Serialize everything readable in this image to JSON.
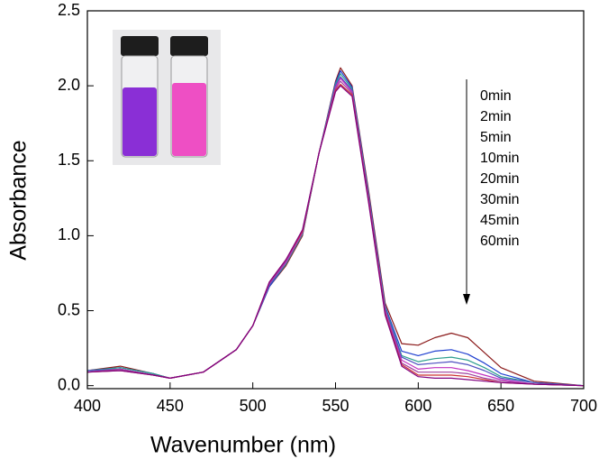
{
  "chart_data": {
    "type": "line",
    "x_label": "Wavenumber (nm)",
    "y_label": "Absorbance",
    "x": [
      400,
      420,
      440,
      450,
      470,
      490,
      500,
      510,
      520,
      530,
      540,
      550,
      553,
      560,
      570,
      580,
      590,
      600,
      610,
      620,
      630,
      640,
      650,
      670,
      700
    ],
    "series": [
      {
        "name": "0min",
        "color": "#8b1a1a",
        "values": [
          0.1,
          0.13,
          0.08,
          0.05,
          0.09,
          0.24,
          0.4,
          0.66,
          0.8,
          1.0,
          1.55,
          2.03,
          2.12,
          2.0,
          1.3,
          0.55,
          0.28,
          0.27,
          0.32,
          0.35,
          0.32,
          0.22,
          0.12,
          0.03,
          0.0
        ]
      },
      {
        "name": "2min",
        "color": "#1f3fd0",
        "values": [
          0.1,
          0.12,
          0.08,
          0.05,
          0.09,
          0.24,
          0.4,
          0.66,
          0.81,
          1.01,
          1.55,
          2.02,
          2.1,
          1.99,
          1.28,
          0.53,
          0.23,
          0.2,
          0.23,
          0.24,
          0.21,
          0.15,
          0.08,
          0.02,
          0.0
        ]
      },
      {
        "name": "5min",
        "color": "#2e9f8f",
        "values": [
          0.1,
          0.12,
          0.08,
          0.05,
          0.09,
          0.24,
          0.4,
          0.67,
          0.81,
          1.01,
          1.55,
          2.01,
          2.08,
          1.98,
          1.27,
          0.52,
          0.2,
          0.16,
          0.18,
          0.19,
          0.17,
          0.12,
          0.06,
          0.02,
          0.0
        ]
      },
      {
        "name": "10min",
        "color": "#5050c0",
        "values": [
          0.1,
          0.11,
          0.07,
          0.05,
          0.09,
          0.24,
          0.4,
          0.67,
          0.82,
          1.02,
          1.55,
          2.0,
          2.06,
          1.97,
          1.26,
          0.51,
          0.19,
          0.14,
          0.15,
          0.16,
          0.14,
          0.1,
          0.05,
          0.02,
          0.0
        ]
      },
      {
        "name": "20min",
        "color": "#c030c0",
        "values": [
          0.09,
          0.11,
          0.07,
          0.05,
          0.09,
          0.24,
          0.4,
          0.68,
          0.82,
          1.02,
          1.55,
          1.99,
          2.05,
          1.96,
          1.25,
          0.5,
          0.17,
          0.11,
          0.12,
          0.12,
          0.1,
          0.07,
          0.04,
          0.01,
          0.0
        ]
      },
      {
        "name": "30min",
        "color": "#a040a0",
        "values": [
          0.09,
          0.11,
          0.07,
          0.05,
          0.09,
          0.24,
          0.4,
          0.68,
          0.83,
          1.03,
          1.55,
          1.98,
          2.03,
          1.95,
          1.24,
          0.49,
          0.15,
          0.09,
          0.09,
          0.09,
          0.08,
          0.05,
          0.03,
          0.01,
          0.0
        ]
      },
      {
        "name": "45min",
        "color": "#cc3333",
        "values": [
          0.09,
          0.1,
          0.07,
          0.05,
          0.09,
          0.24,
          0.4,
          0.69,
          0.84,
          1.03,
          1.55,
          1.97,
          2.01,
          1.94,
          1.23,
          0.48,
          0.14,
          0.07,
          0.07,
          0.07,
          0.06,
          0.04,
          0.02,
          0.01,
          0.0
        ]
      },
      {
        "name": "60min",
        "color": "#800080",
        "values": [
          0.09,
          0.1,
          0.07,
          0.05,
          0.09,
          0.24,
          0.4,
          0.69,
          0.84,
          1.04,
          1.55,
          1.96,
          2.0,
          1.93,
          1.22,
          0.47,
          0.13,
          0.06,
          0.05,
          0.05,
          0.04,
          0.03,
          0.02,
          0.01,
          0.0
        ]
      }
    ],
    "xlim": [
      400,
      700
    ],
    "xticks": [
      400,
      450,
      500,
      550,
      600,
      650,
      700
    ],
    "ylim": [
      -0.02,
      2.5
    ],
    "yticks": [
      {
        "value": 0,
        "label": "0.0"
      },
      0.5,
      {
        "value": 1,
        "label": "1.0"
      },
      1.5,
      {
        "value": 2,
        "label": "2.0"
      },
      2.5
    ]
  }
}
